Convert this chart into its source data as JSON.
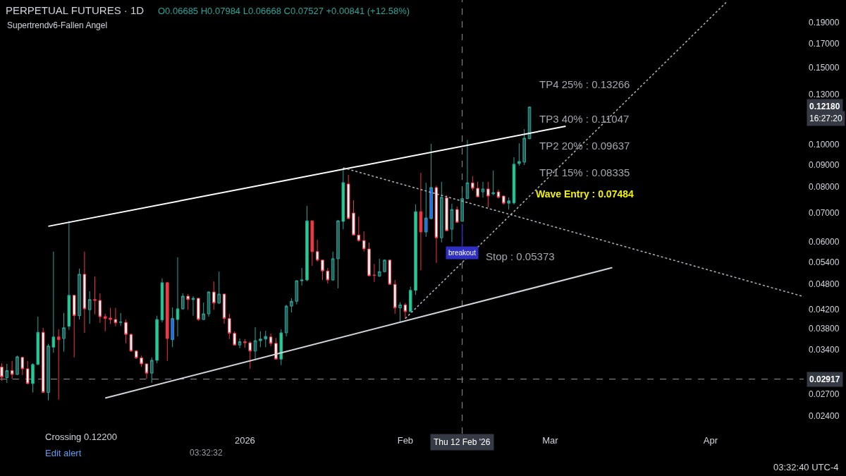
{
  "chart_data": {
    "type": "candlestick",
    "title": "PERPETUAL FUTURES · 1D",
    "subtitle": "O0.06685 H0.07984 L0.06668 C0.07527 +0.00841 (+12.58%)",
    "xlim": [
      "2025-11-14T16:00",
      "2026-04-19"
    ],
    "xticks": [
      {
        "value": "2026-01-01",
        "label": "2026"
      },
      {
        "value": "2026-02-01",
        "label": "Feb"
      },
      {
        "value": "2026-03-01",
        "label": "Mar"
      },
      {
        "value": "2026-04-01",
        "label": "Apr"
      }
    ],
    "ylim": [
      0.0219,
      0.2137
    ],
    "log": true,
    "yticks": [
      {
        "value": 0.024,
        "label": "0.02400"
      },
      {
        "value": 0.027,
        "label": "0.02700"
      },
      {
        "value": 0.034,
        "label": "0.03400"
      },
      {
        "value": 0.038,
        "label": "0.03800"
      },
      {
        "value": 0.042,
        "label": "0.04200"
      },
      {
        "value": 0.048,
        "label": "0.04800"
      },
      {
        "value": 0.054,
        "label": "0.05400"
      },
      {
        "value": 0.06,
        "label": "0.06000"
      },
      {
        "value": 0.07,
        "label": "0.07000"
      },
      {
        "value": 0.08,
        "label": "0.08000"
      },
      {
        "value": 0.09,
        "label": "0.09000"
      },
      {
        "value": 0.1,
        "label": "0.10000"
      },
      {
        "value": 0.13,
        "label": "0.13000"
      },
      {
        "value": 0.15,
        "label": "0.15000"
      },
      {
        "value": 0.17,
        "label": "0.17000"
      },
      {
        "value": 0.19,
        "label": "0.19000"
      }
    ],
    "grid": false,
    "series": [
      {
        "color": "#26a69a",
        "x": [
          "2025-11-16",
          "2025-11-18",
          "2025-11-21",
          "2025-11-22",
          "2025-11-24",
          "2025-11-25",
          "2025-11-27",
          "2025-11-28",
          "2025-11-30",
          "2025-12-02",
          "2025-12-08",
          "2025-12-14",
          "2025-12-15",
          "2025-12-16",
          "2025-12-18",
          "2025-12-19",
          "2025-12-20",
          "2025-12-22",
          "2025-12-24",
          "2025-12-25",
          "2025-12-27",
          "2025-12-31",
          "2026-01-03",
          "2026-01-04",
          "2026-01-05",
          "2026-01-08",
          "2026-01-09",
          "2026-01-10",
          "2026-01-11",
          "2026-01-12",
          "2026-01-13",
          "2026-01-18",
          "2026-01-19",
          "2026-01-20",
          "2026-01-27",
          "2026-01-28",
          "2026-01-31",
          "2026-02-02",
          "2026-02-03",
          "2026-02-05",
          "2026-02-06",
          "2026-02-08",
          "2026-02-10",
          "2026-02-12",
          "2026-02-13",
          "2026-02-16",
          "2026-02-18",
          "2026-02-21",
          "2026-02-22",
          "2026-02-23",
          "2026-02-24",
          "2026-02-25"
        ],
        "ohlc": [
          [
            0.0294,
            0.0316,
            0.0286,
            0.0305
          ],
          [
            0.0299,
            0.033,
            0.0298,
            0.0328
          ],
          [
            0.0285,
            0.0317,
            0.0272,
            0.0315
          ],
          [
            0.0315,
            0.0405,
            0.0314,
            0.0373
          ],
          [
            0.0272,
            0.0351,
            0.0261,
            0.0347
          ],
          [
            0.0345,
            0.057,
            0.0335,
            0.0364
          ],
          [
            0.0361,
            0.0413,
            0.0337,
            0.0382
          ],
          [
            0.0385,
            0.067,
            0.0378,
            0.0453
          ],
          [
            0.0407,
            0.0521,
            0.0399,
            0.0506
          ],
          [
            0.042,
            0.0463,
            0.039,
            0.0443
          ],
          [
            0.0393,
            0.0413,
            0.0386,
            0.0394
          ],
          [
            0.0301,
            0.0327,
            0.0286,
            0.0322
          ],
          [
            0.0322,
            0.0407,
            0.0317,
            0.0399
          ],
          [
            0.0398,
            0.0495,
            0.0393,
            0.0484
          ],
          [
            0.0359,
            0.0425,
            0.0345,
            0.0401
          ],
          [
            0.0399,
            0.0553,
            0.0365,
            0.0422
          ],
          [
            0.0422,
            0.0458,
            0.042,
            0.0451
          ],
          [
            0.0443,
            0.0451,
            0.0407,
            0.0446
          ],
          [
            0.0399,
            0.0436,
            0.0398,
            0.0411
          ],
          [
            0.0411,
            0.0463,
            0.0405,
            0.0461
          ],
          [
            0.0435,
            0.0513,
            0.0433,
            0.0456
          ],
          [
            0.0349,
            0.0361,
            0.0343,
            0.0355
          ],
          [
            0.0338,
            0.0383,
            0.0322,
            0.0357
          ],
          [
            0.0357,
            0.0375,
            0.0345,
            0.036
          ],
          [
            0.036,
            0.0376,
            0.0345,
            0.0365
          ],
          [
            0.0324,
            0.0379,
            0.0314,
            0.0372
          ],
          [
            0.0372,
            0.0431,
            0.0365,
            0.0428
          ],
          [
            0.0428,
            0.0446,
            0.0414,
            0.0439
          ],
          [
            0.0439,
            0.0491,
            0.0432,
            0.0489
          ],
          [
            0.0489,
            0.0523,
            0.0477,
            0.0491
          ],
          [
            0.0491,
            0.0725,
            0.0488,
            0.067
          ],
          [
            0.0491,
            0.057,
            0.0489,
            0.0549
          ],
          [
            0.0549,
            0.0673,
            0.047,
            0.067
          ],
          [
            0.0668,
            0.0885,
            0.0641,
            0.0819
          ],
          [
            0.0501,
            0.0549,
            0.0499,
            0.0513
          ],
          [
            0.0513,
            0.0547,
            0.0511,
            0.0545
          ],
          [
            0.0424,
            0.0437,
            0.0392,
            0.0431
          ],
          [
            0.0416,
            0.0474,
            0.0414,
            0.0465
          ],
          [
            0.0465,
            0.073,
            0.0454,
            0.0703
          ],
          [
            0.0632,
            0.0818,
            0.0616,
            0.068
          ],
          [
            0.0678,
            0.1004,
            0.0675,
            0.0798
          ],
          [
            0.0613,
            0.0822,
            0.0598,
            0.0758
          ],
          [
            0.0641,
            0.0733,
            0.06,
            0.0711
          ],
          [
            0.06685,
            0.07984,
            0.06668,
            0.07527
          ],
          [
            0.0753,
            0.1025,
            0.0751,
            0.0818
          ],
          [
            0.078,
            0.0822,
            0.0757,
            0.0792
          ],
          [
            0.0772,
            0.0872,
            0.0766,
            0.0777
          ],
          [
            0.0735,
            0.0758,
            0.0711,
            0.0744
          ],
          [
            0.0736,
            0.0936,
            0.073,
            0.0902
          ],
          [
            0.0905,
            0.1007,
            0.0895,
            0.0915
          ],
          [
            0.0912,
            0.1085,
            0.0898,
            0.1034
          ],
          [
            0.1032,
            0.122,
            0.1028,
            0.1218
          ]
        ],
        "colors": [
          "#2a5d58",
          "#2a5d58",
          "#23d18b",
          "#23d18b",
          "#2a5d58",
          "#23d18b",
          "#2a5d58",
          "#23d18b",
          "#2a5d58",
          "#2a5d58",
          "#26a69a",
          "#2a5d58",
          "#23d18b",
          "#23d18b",
          "#2962ff",
          "#23d18b",
          "#2a5d58",
          "#26a69a",
          "#2a5d58",
          "#2a5d58",
          "#2a5d58",
          "#2a5d58",
          "#2a5d58",
          "#26a69a",
          "#26a69a",
          "#23d18b",
          "#2a5d58",
          "#2a5d58",
          "#2a5d58",
          "#26a69a",
          "#23d18b",
          "#2a5d58",
          "#2a5d58",
          "#23d18b",
          "#2a5d58",
          "#2a5d58",
          "#2a5d58",
          "#23d18b",
          "#23d18b",
          "#2962ff",
          "#2962ff",
          "#2a5d58",
          "#2a5d58",
          "#2a5d58",
          "#2a5d58",
          "#2a5d58",
          "#26a69a",
          "#26a69a",
          "#23d18b",
          "#26a69a",
          "#2a5d58",
          "#2a5d58"
        ]
      },
      {
        "color": "#f23645",
        "x": [
          "2025-11-15",
          "2025-11-17",
          "2025-11-19",
          "2025-11-20",
          "2025-11-23",
          "2025-11-26",
          "2025-11-29",
          "2025-12-01",
          "2025-12-03",
          "2025-12-04",
          "2025-12-05",
          "2025-12-06",
          "2025-12-07",
          "2025-12-09",
          "2025-12-10",
          "2025-12-11",
          "2025-12-12",
          "2025-12-13",
          "2025-12-17",
          "2025-12-21",
          "2025-12-23",
          "2025-12-26",
          "2025-12-28",
          "2025-12-29",
          "2025-12-30",
          "2026-01-01",
          "2026-01-02",
          "2026-01-06",
          "2026-01-07",
          "2026-01-14",
          "2026-01-15",
          "2026-01-16",
          "2026-01-17",
          "2026-01-21",
          "2026-01-22",
          "2026-01-23",
          "2026-01-24",
          "2026-01-25",
          "2026-01-26",
          "2026-01-29",
          "2026-01-30",
          "2026-02-01",
          "2026-02-04",
          "2026-02-07",
          "2026-02-09",
          "2026-02-11",
          "2026-02-14",
          "2026-02-15",
          "2026-02-17",
          "2026-02-19",
          "2026-02-20"
        ],
        "ohlc": [
          [
            0.0311,
            0.0317,
            0.0289,
            0.0295
          ],
          [
            0.0305,
            0.0321,
            0.0292,
            0.0299
          ],
          [
            0.0327,
            0.0328,
            0.0298,
            0.0308
          ],
          [
            0.0308,
            0.0321,
            0.0284,
            0.0285
          ],
          [
            0.0373,
            0.0382,
            0.0271,
            0.0272
          ],
          [
            0.0364,
            0.0379,
            0.0262,
            0.0359
          ],
          [
            0.0453,
            0.0454,
            0.0327,
            0.0407
          ],
          [
            0.0506,
            0.057,
            0.0372,
            0.0422
          ],
          [
            0.0443,
            0.05,
            0.041,
            0.0441
          ],
          [
            0.0441,
            0.0458,
            0.0392,
            0.0405
          ],
          [
            0.0405,
            0.0411,
            0.0375,
            0.0401
          ],
          [
            0.0402,
            0.0424,
            0.039,
            0.0399
          ],
          [
            0.0399,
            0.0424,
            0.0385,
            0.0392
          ],
          [
            0.0393,
            0.0399,
            0.0352,
            0.0369
          ],
          [
            0.0369,
            0.0371,
            0.0337,
            0.0338
          ],
          [
            0.0338,
            0.034,
            0.0324,
            0.0326
          ],
          [
            0.0326,
            0.033,
            0.0311,
            0.0316
          ],
          [
            0.0316,
            0.0317,
            0.0292,
            0.0301
          ],
          [
            0.0484,
            0.0486,
            0.0321,
            0.0361
          ],
          [
            0.0451,
            0.0456,
            0.042,
            0.0443
          ],
          [
            0.0446,
            0.0447,
            0.0396,
            0.0399
          ],
          [
            0.0461,
            0.0487,
            0.042,
            0.0435
          ],
          [
            0.0456,
            0.0457,
            0.039,
            0.0401
          ],
          [
            0.0401,
            0.0411,
            0.036,
            0.0371
          ],
          [
            0.0371,
            0.0375,
            0.0348,
            0.0349
          ],
          [
            0.0355,
            0.036,
            0.0344,
            0.0353
          ],
          [
            0.0353,
            0.0356,
            0.0308,
            0.0338
          ],
          [
            0.0364,
            0.0371,
            0.0347,
            0.0352
          ],
          [
            0.0352,
            0.0362,
            0.0323,
            0.0324
          ],
          [
            0.067,
            0.0671,
            0.0529,
            0.057
          ],
          [
            0.057,
            0.0607,
            0.0541,
            0.0545
          ],
          [
            0.0545,
            0.0547,
            0.0491,
            0.0515
          ],
          [
            0.0515,
            0.0523,
            0.0482,
            0.0491
          ],
          [
            0.0813,
            0.0853,
            0.0676,
            0.0678
          ],
          [
            0.0698,
            0.0746,
            0.0621,
            0.0622
          ],
          [
            0.0622,
            0.0685,
            0.06,
            0.0604
          ],
          [
            0.0604,
            0.0634,
            0.057,
            0.0578
          ],
          [
            0.0578,
            0.0598,
            0.05,
            0.0502
          ],
          [
            0.0504,
            0.0534,
            0.0486,
            0.0503
          ],
          [
            0.0545,
            0.0547,
            0.0479,
            0.048
          ],
          [
            0.048,
            0.0491,
            0.0411,
            0.0424
          ],
          [
            0.0431,
            0.0435,
            0.0401,
            0.0416
          ],
          [
            0.0703,
            0.0862,
            0.0517,
            0.0632
          ],
          [
            0.0798,
            0.0806,
            0.0537,
            0.0613
          ],
          [
            0.0756,
            0.0766,
            0.0635,
            0.0636
          ],
          [
            0.0711,
            0.0722,
            0.0663,
            0.0665
          ],
          [
            0.0818,
            0.0847,
            0.0786,
            0.0795
          ],
          [
            0.0795,
            0.0822,
            0.0757,
            0.076
          ],
          [
            0.0792,
            0.0822,
            0.0719,
            0.0763
          ],
          [
            0.078,
            0.0789,
            0.0753,
            0.0758
          ],
          [
            0.0763,
            0.0766,
            0.073,
            0.0735
          ]
        ],
        "colors": [
          "#ffffff",
          "#ffffff",
          "#ffffff",
          "#ffffff",
          "#ffffff",
          "#f23645",
          "#ffffff",
          "#ffffff",
          "#f23645",
          "#ffffff",
          "#f23645",
          "#f23645",
          "#ffffff",
          "#ffffff",
          "#ffffff",
          "#ffffff",
          "#ffffff",
          "#ffffff",
          "#f23645",
          "#ffffff",
          "#ffffff",
          "#ffffff",
          "#ffffff",
          "#ffffff",
          "#ffffff",
          "#f23645",
          "#ffffff",
          "#ffffff",
          "#ffffff",
          "#f23645",
          "#ffffff",
          "#ffffff",
          "#ffffff",
          "#ffffff",
          "#ffffff",
          "#ffffff",
          "#ffffff",
          "#ffffff",
          "#f23645",
          "#ffffff",
          "#ffffff",
          "#ffffff",
          "#f23645",
          "#ffffff",
          "#ffffff",
          "#ffffff",
          "#ffffff",
          "#ffffff",
          "#ffffff",
          "#ffffff",
          "#ffffff"
        ]
      },
      {
        "type": "line",
        "color": "#ffffff",
        "line_style": "solid",
        "x": [
          "2025-11-24",
          "2026-03-04"
        ],
        "values": [
          0.0651,
          0.1101
        ]
      },
      {
        "type": "line",
        "color": "#d1d4dc",
        "line_style": "solid",
        "x": [
          "2025-12-05",
          "2026-03-13"
        ],
        "values": [
          0.0264,
          0.0524
        ]
      },
      {
        "type": "line",
        "color": "#b2b5be",
        "line_style": "dotted",
        "x": [
          "2026-01-20",
          "2026-04-19"
        ],
        "values": [
          0.0885,
          0.045
        ]
      },
      {
        "type": "line",
        "color": "#b2b5be",
        "line_style": "dotted",
        "x": [
          "2026-02-01",
          "2026-04-04"
        ],
        "values": [
          0.0401,
          0.211
        ]
      }
    ],
    "ref_lines": [
      {
        "axis": "x",
        "value": "2026-02-12",
        "label": "Thu 12 Feb '26",
        "color": "#9598a1",
        "line_style": "dashed"
      },
      {
        "axis": "y",
        "value": 0.02917,
        "label": "0.02917",
        "color": "#9598a1",
        "line_style": "dashed"
      }
    ],
    "annotations": [
      "TP4 25% : 0.13266",
      "TP3 40% : 0.11047",
      "TP2 20% : 0.09637",
      "TP1 15% : 0.08335",
      "Wave Entry : 0.07484",
      "Stop : 0.05373",
      {
        "text": "breakout",
        "x": "2026-02-12",
        "y": 0.06668
      },
      "0.12180",
      "16:27:20",
      "Supertrendv6-Fallen Angel",
      "Crossing 0.12200",
      "Edit alert",
      "03:32:32",
      "03:32:40 UTC-4"
    ]
  }
}
